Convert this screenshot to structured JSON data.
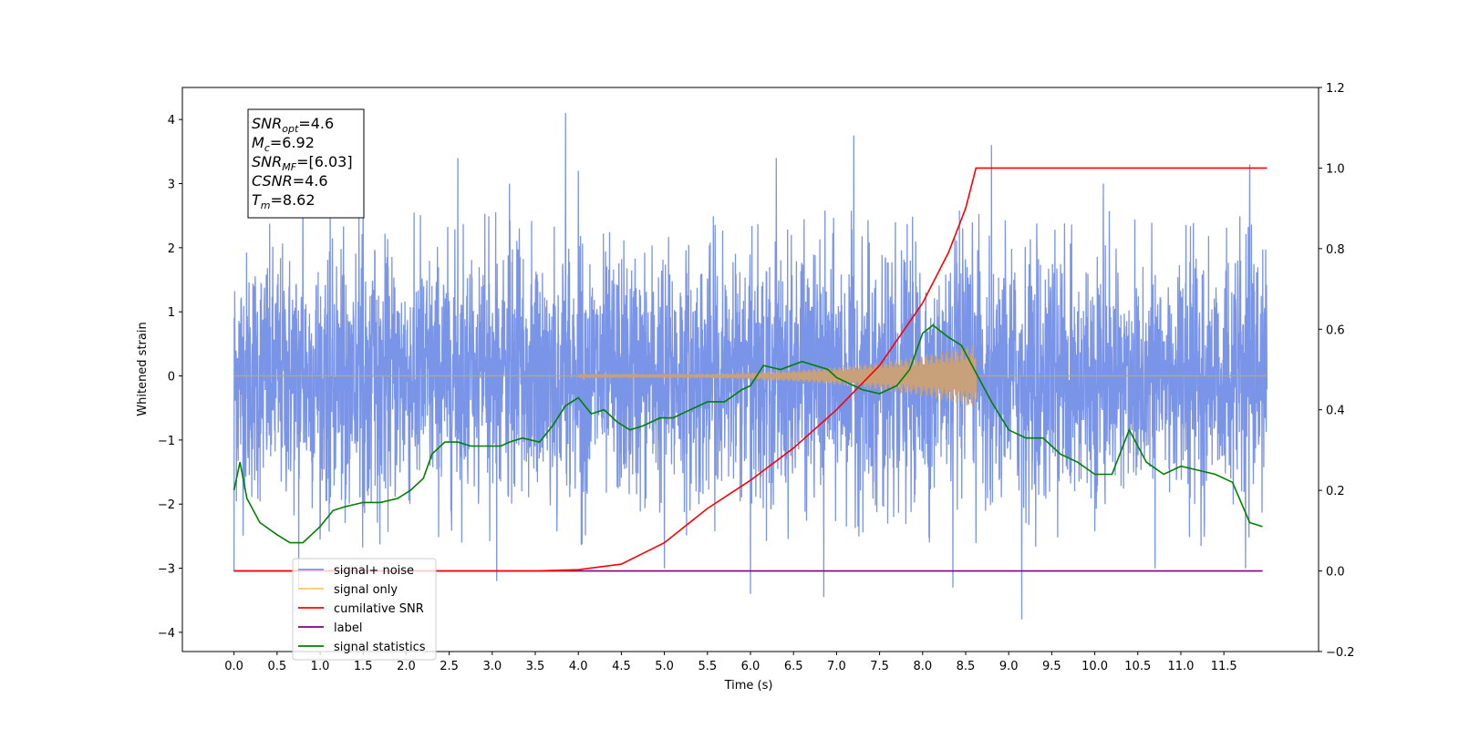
{
  "chart_data": {
    "type": "line",
    "xlabel": "Time (s)",
    "ylabel": "Whitened strain",
    "xlim": [
      -0.6,
      12.6
    ],
    "ylim": [
      -4.3,
      4.5
    ],
    "ylim_right": [
      -0.2,
      1.2
    ],
    "x_ticks": [
      0.0,
      0.5,
      1.0,
      1.5,
      2.0,
      2.5,
      3.0,
      3.5,
      4.0,
      4.5,
      5.0,
      5.5,
      6.0,
      6.5,
      7.0,
      7.5,
      8.0,
      8.5,
      9.0,
      9.5,
      10.0,
      10.5,
      11.0,
      11.5
    ],
    "x_tick_labels": [
      "0.0",
      "0.5",
      "1.0",
      "1.5",
      "2.0",
      "2.5",
      "3.0",
      "3.5",
      "4.0",
      "4.5",
      "5.0",
      "5.5",
      "6.0",
      "6.5",
      "7.0",
      "7.5",
      "8.0",
      "8.5",
      "9.0",
      "9.5",
      "10.0",
      "10.5",
      "11.0",
      "11.5"
    ],
    "y_ticks": [
      4,
      3,
      2,
      1,
      0,
      -1,
      -2,
      -3,
      -4
    ],
    "y_tick_labels": [
      "4",
      "3",
      "2",
      "1",
      "0",
      "−1",
      "−2",
      "−3",
      "−4"
    ],
    "y2_ticks": [
      1.2,
      1.0,
      0.8,
      0.6,
      0.4,
      0.2,
      0.0,
      -0.2
    ],
    "y2_tick_labels": [
      "1.2",
      "1.0",
      "0.8",
      "0.6",
      "0.4",
      "0.2",
      "0.0",
      "−0.2"
    ],
    "legend_position": "lower-left",
    "annotation": {
      "lines": [
        {
          "base": "SNR",
          "sub": "opt",
          "value": "=4.6"
        },
        {
          "base": "M",
          "sub": "c",
          "value": "=6.92"
        },
        {
          "base": "SNR",
          "sub": "MF",
          "value": "=[6.03]"
        },
        {
          "base": "CSNR",
          "sub": "",
          "value": "=4.6"
        },
        {
          "base": "T",
          "sub": "m",
          "value": "=8.62"
        }
      ]
    },
    "series": [
      {
        "name": "signal+ noise",
        "color": "#7a94e8",
        "axis": "left",
        "x_range": [
          0.0,
          12.0
        ],
        "envelope_upper_typical": 2.2,
        "envelope_lower_typical": -2.3,
        "peaks_high": [
          [
            0.8,
            2.9
          ],
          [
            1.5,
            3.0
          ],
          [
            2.6,
            3.4
          ],
          [
            3.2,
            3.0
          ],
          [
            3.85,
            4.1
          ],
          [
            4.0,
            3.2
          ],
          [
            6.3,
            3.4
          ],
          [
            7.2,
            3.75
          ],
          [
            8.8,
            3.6
          ],
          [
            10.1,
            3.0
          ],
          [
            11.8,
            3.3
          ]
        ],
        "peaks_low": [
          [
            0.0,
            -3.05
          ],
          [
            0.75,
            -3.3
          ],
          [
            3.05,
            -3.2
          ],
          [
            5.0,
            -3.0
          ],
          [
            6.0,
            -3.4
          ],
          [
            6.85,
            -3.45
          ],
          [
            8.35,
            -3.3
          ],
          [
            9.15,
            -3.8
          ],
          [
            10.7,
            -3.0
          ],
          [
            11.75,
            -3.0
          ]
        ]
      },
      {
        "name": "signal only",
        "color": "#c8a07a",
        "axis": "left",
        "chirp": {
          "start": 4.0,
          "end": 8.62,
          "max_amplitude": 0.5
        }
      },
      {
        "name": "cumilative SNR",
        "color": "#ff0000",
        "axis": "right",
        "x": [
          0.0,
          3.5,
          4.0,
          4.5,
          5.0,
          5.5,
          6.0,
          6.5,
          7.0,
          7.5,
          8.0,
          8.3,
          8.5,
          8.62,
          12.0
        ],
        "values": [
          0.0,
          0.0,
          0.003,
          0.017,
          0.07,
          0.155,
          0.225,
          0.305,
          0.4,
          0.51,
          0.665,
          0.79,
          0.9,
          1.0,
          1.0
        ]
      },
      {
        "name": "label",
        "color": "#800080",
        "axis": "right",
        "x": [
          0.0,
          11.95
        ],
        "values": [
          0.0,
          0.0
        ]
      },
      {
        "name": "signal statistics",
        "color": "#008000",
        "axis": "right",
        "x": [
          0.0,
          0.07,
          0.15,
          0.3,
          0.5,
          0.65,
          0.8,
          1.0,
          1.15,
          1.3,
          1.5,
          1.7,
          1.9,
          2.05,
          2.2,
          2.3,
          2.45,
          2.6,
          2.75,
          2.95,
          3.1,
          3.2,
          3.35,
          3.55,
          3.7,
          3.85,
          4.0,
          4.15,
          4.3,
          4.45,
          4.6,
          4.75,
          4.95,
          5.1,
          5.3,
          5.5,
          5.7,
          5.9,
          6.0,
          6.15,
          6.35,
          6.6,
          6.9,
          7.0,
          7.3,
          7.5,
          7.7,
          7.85,
          8.0,
          8.12,
          8.3,
          8.45,
          8.6,
          8.8,
          9.0,
          9.2,
          9.4,
          9.6,
          9.8,
          10.0,
          10.2,
          10.4,
          10.6,
          10.8,
          11.0,
          11.2,
          11.4,
          11.6,
          11.8,
          11.95
        ],
        "values": [
          0.2,
          0.27,
          0.18,
          0.12,
          0.09,
          0.07,
          0.07,
          0.11,
          0.15,
          0.16,
          0.17,
          0.17,
          0.18,
          0.2,
          0.23,
          0.29,
          0.32,
          0.32,
          0.31,
          0.31,
          0.31,
          0.32,
          0.33,
          0.32,
          0.36,
          0.41,
          0.43,
          0.39,
          0.4,
          0.37,
          0.35,
          0.36,
          0.38,
          0.38,
          0.4,
          0.42,
          0.42,
          0.45,
          0.46,
          0.51,
          0.5,
          0.52,
          0.5,
          0.48,
          0.45,
          0.44,
          0.46,
          0.5,
          0.59,
          0.61,
          0.58,
          0.56,
          0.5,
          0.42,
          0.35,
          0.33,
          0.33,
          0.29,
          0.27,
          0.24,
          0.24,
          0.35,
          0.27,
          0.24,
          0.26,
          0.25,
          0.24,
          0.22,
          0.12,
          0.11
        ]
      }
    ],
    "legend": [
      {
        "label": "signal+ noise",
        "color": "#7a94e8"
      },
      {
        "label": "signal only",
        "color": "#ffc864"
      },
      {
        "label": "cumilative SNR",
        "color": "#ff0000"
      },
      {
        "label": "label",
        "color": "#800080"
      },
      {
        "label": "signal statistics",
        "color": "#008000"
      }
    ]
  }
}
